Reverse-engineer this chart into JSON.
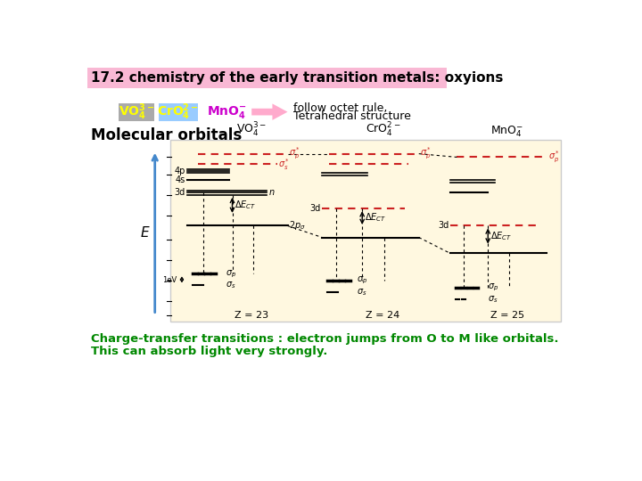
{
  "title": "17.2 chemistry of the early transition metals: oxyions",
  "title_bg": "#f9b8d4",
  "title_color": "#000000",
  "vo4_bg": "#aaaaaa",
  "cro4_bg": "#99ccff",
  "vo4_text_color": "#ffff00",
  "cro4_text_color": "#ffff00",
  "mno4_text_color": "#cc00cc",
  "arrow_color": "#ffaacc",
  "octet_text1": "follow octet rule,",
  "octet_text2": "Tetrahedral structure",
  "mol_orb_label": "Molecular orbitals",
  "diagram_bg": "#fff8e0",
  "z23_label": "Z = 23",
  "z24_label": "Z = 24",
  "z25_label": "Z = 25",
  "charge_text1": "Charge-transfer transitions : electron jumps from O to M like orbitals.",
  "charge_text2": "This can absorb light very strongly.",
  "charge_color": "#008800",
  "red": "#cc2222",
  "black": "#000000",
  "blue_arrow": "#4488cc",
  "e_label": "E"
}
